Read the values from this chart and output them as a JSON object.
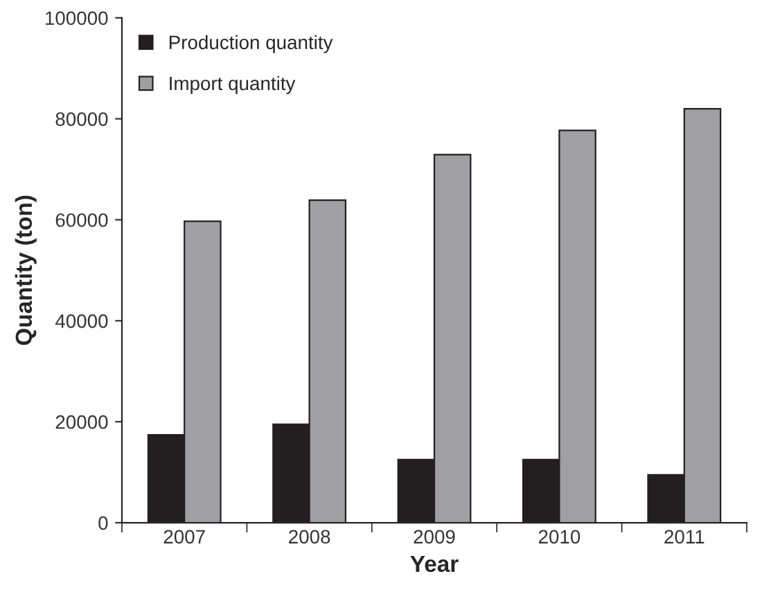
{
  "chart_data": {
    "type": "bar",
    "xlabel": "Year",
    "ylabel": "Quantity (ton)",
    "categories": [
      "2007",
      "2008",
      "2009",
      "2010",
      "2011"
    ],
    "series": [
      {
        "name": "Production quantity",
        "color": "#231f20",
        "values": [
          17400,
          19500,
          12500,
          12500,
          9500
        ]
      },
      {
        "name": "Import quantity",
        "color": "#a0a0a2",
        "values": [
          59700,
          63900,
          72900,
          77700,
          82000
        ]
      }
    ],
    "ylim": [
      0,
      100000
    ],
    "yticks": [
      0,
      20000,
      40000,
      60000,
      80000,
      100000
    ],
    "grid": false,
    "legend": "top left"
  }
}
